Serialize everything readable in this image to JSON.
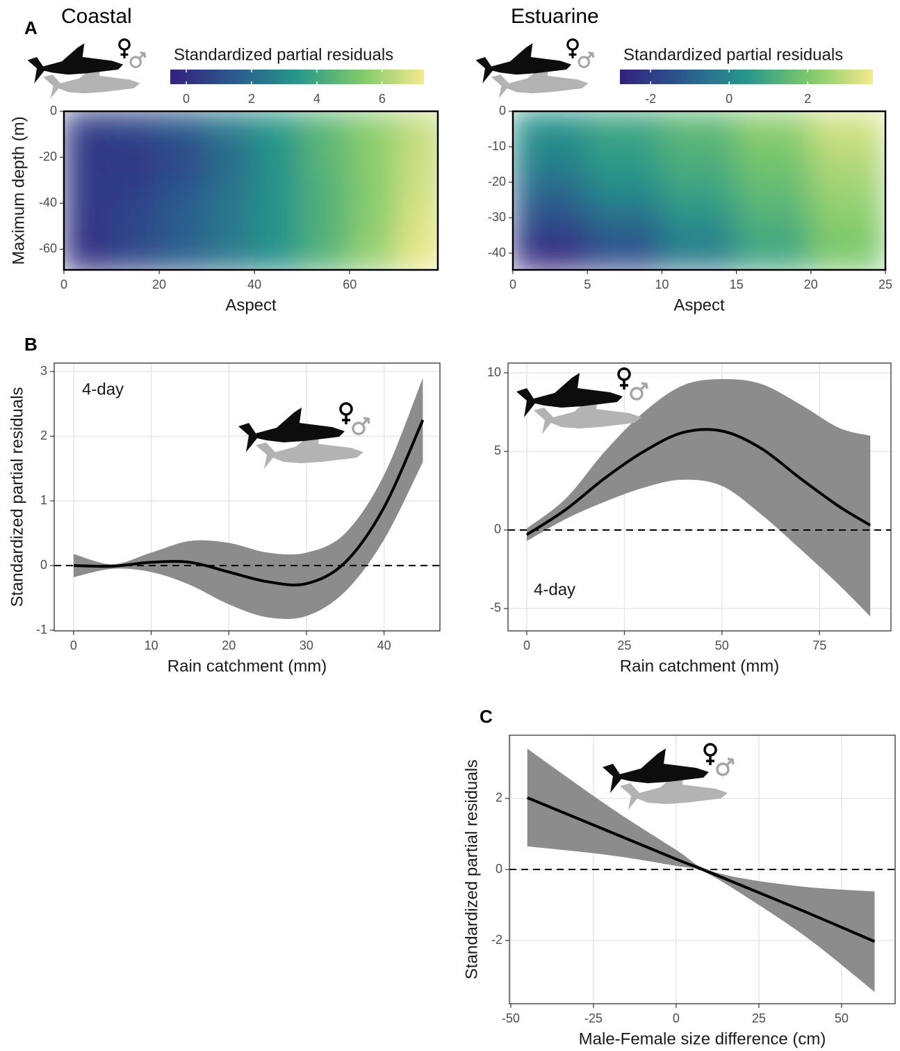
{
  "chart_data": [
    {
      "type": "heatmap",
      "panel": "A",
      "title": "Coastal",
      "colorbar_title": "Standardized partial residuals",
      "xlabel": "Aspect",
      "ylabel": "Maximum depth (m)",
      "x": [
        5,
        15,
        25,
        35,
        45,
        55,
        65,
        75
      ],
      "y": [
        -7,
        -21,
        -35,
        -49,
        -63
      ],
      "z": [
        [
          0.5,
          0.8,
          1.5,
          2.5,
          3.5,
          4.6,
          5.6,
          6.5
        ],
        [
          0.3,
          0.3,
          0.8,
          2.0,
          3.3,
          4.6,
          5.6,
          6.6
        ],
        [
          0.3,
          0.6,
          1.4,
          2.3,
          3.3,
          4.4,
          5.5,
          6.7
        ],
        [
          0.2,
          0.8,
          1.6,
          2.4,
          3.3,
          4.4,
          5.6,
          6.9
        ],
        [
          0.0,
          0.8,
          1.6,
          2.4,
          3.3,
          4.5,
          5.8,
          7.1
        ]
      ],
      "xlim": [
        0,
        78.5
      ],
      "ylim": [
        -69,
        0
      ],
      "xticks": [
        0,
        20,
        40,
        60
      ],
      "yticks": [
        0,
        -20,
        -40,
        -60
      ],
      "clim": [
        -0.49,
        7.28
      ],
      "cticks": [
        0,
        2,
        4,
        6
      ],
      "colorscale": [
        "#35207d",
        "#2b5a8e",
        "#27978a",
        "#7cc96a",
        "#f4ea8c"
      ]
    },
    {
      "type": "heatmap",
      "title": "Estuarine",
      "colorbar_title": "Standardized partial residuals",
      "xlabel": "Aspect",
      "x": [
        2.5,
        7.5,
        12.5,
        17.5,
        22.5
      ],
      "y": [
        -4.5,
        -13.5,
        -22.5,
        -31.5,
        -40.5
      ],
      "z": [
        [
          0.3,
          0.9,
          1.5,
          2.3,
          3.2
        ],
        [
          -0.1,
          0.6,
          1.2,
          1.9,
          2.8
        ],
        [
          -0.8,
          0.1,
          0.8,
          1.6,
          2.5
        ],
        [
          -1.6,
          -0.8,
          0.2,
          1.2,
          2.2
        ],
        [
          -2.6,
          -1.5,
          -0.3,
          0.9,
          2.0
        ]
      ],
      "xlim": [
        0,
        25
      ],
      "ylim": [
        -44.7,
        0
      ],
      "xticks": [
        0,
        5,
        10,
        15,
        20,
        25
      ],
      "yticks": [
        0,
        -10,
        -20,
        -30,
        -40
      ],
      "clim": [
        -2.78,
        3.66
      ],
      "cticks": [
        -2,
        0,
        2
      ],
      "colorscale": [
        "#35207d",
        "#2b5a8e",
        "#27978a",
        "#7cc96a",
        "#f4ea8c"
      ]
    },
    {
      "type": "line",
      "panel": "B",
      "annotation": "4-day",
      "xlabel": "Rain catchment (mm)",
      "ylabel": "Standardized partial residuals",
      "x": [
        0,
        5,
        10,
        15,
        20,
        25,
        30,
        35,
        40,
        45
      ],
      "values": [
        0,
        -0.01,
        0.05,
        0.05,
        -0.1,
        -0.25,
        -0.28,
        0.05,
        0.9,
        2.25
      ],
      "lower": [
        -0.18,
        -0.05,
        -0.1,
        -0.3,
        -0.6,
        -0.8,
        -0.78,
        -0.4,
        0.4,
        1.6
      ],
      "upper": [
        0.18,
        0.02,
        0.2,
        0.38,
        0.35,
        0.2,
        0.2,
        0.5,
        1.4,
        2.9
      ],
      "hline": 0,
      "line_color": "#000000",
      "band_color": "#8c8c8c",
      "xlim": [
        -2.5,
        47.2
      ],
      "ylim": [
        -1.01,
        3.13
      ],
      "xticks": [
        0,
        10,
        20,
        30,
        40
      ],
      "yticks": [
        -1,
        0,
        1,
        2,
        3
      ],
      "grid": true
    },
    {
      "type": "line",
      "annotation": "4-day",
      "xlabel": "Rain catchment (mm)",
      "x": [
        0,
        10,
        20,
        30,
        40,
        50,
        60,
        70,
        80,
        88
      ],
      "values": [
        -0.3,
        1.3,
        3.3,
        5.0,
        6.2,
        6.3,
        5.2,
        3.3,
        1.5,
        0.3
      ],
      "lower": [
        -0.7,
        0.7,
        1.8,
        2.7,
        3.2,
        2.8,
        1.0,
        -1.2,
        -3.5,
        -5.5
      ],
      "upper": [
        0.1,
        2.0,
        5.0,
        7.5,
        9.2,
        9.6,
        9.3,
        8.0,
        6.5,
        6.0
      ],
      "hline": 0,
      "line_color": "#000000",
      "band_color": "#8c8c8c",
      "xlim": [
        -4.8,
        93.3
      ],
      "ylim": [
        -6.42,
        10.62
      ],
      "xticks": [
        0,
        25,
        50,
        75
      ],
      "yticks": [
        -5,
        0,
        5,
        10
      ],
      "grid": true
    },
    {
      "type": "line",
      "panel": "C",
      "xlabel": "Male-Female size difference (cm)",
      "ylabel": "Standardized partial residuals",
      "x": [
        -45,
        -20,
        0,
        8,
        20,
        40,
        60
      ],
      "values": [
        2.02,
        1.06,
        0.29,
        0,
        -0.46,
        -1.23,
        -2.03
      ],
      "lower": [
        0.65,
        0.4,
        0.1,
        -0.05,
        -0.7,
        -1.95,
        -3.45
      ],
      "upper": [
        3.4,
        1.75,
        0.55,
        0.05,
        -0.25,
        -0.5,
        -0.62
      ],
      "hline": 0,
      "line_color": "#000000",
      "band_color": "#8c8c8c",
      "xlim": [
        -50.4,
        66.2
      ],
      "ylim": [
        -3.78,
        3.78
      ],
      "xticks": [
        -50,
        -25,
        0,
        25,
        50
      ],
      "yticks": [
        -2,
        0,
        2
      ],
      "grid": true
    }
  ]
}
